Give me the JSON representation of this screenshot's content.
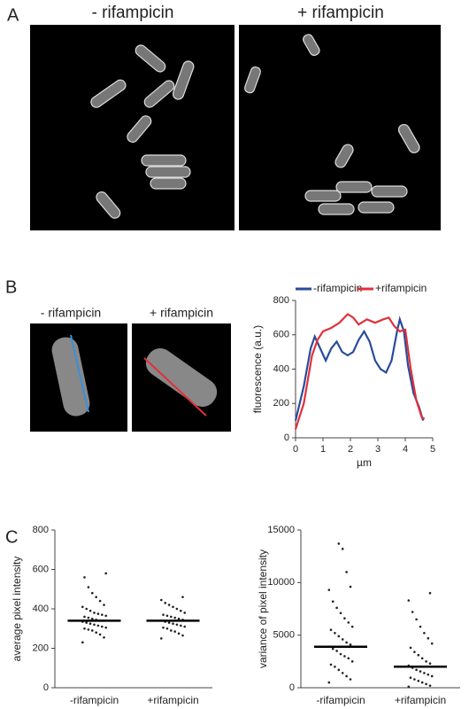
{
  "panel_labels": [
    "A",
    "B",
    "C"
  ],
  "image_labels": [
    "- rifampicin",
    "+ rifampicin",
    "- rifampicin",
    "+ rifampicin"
  ],
  "chart_data": [
    {
      "type": "line",
      "xlabel": "µm",
      "ylabel": "fluorescence (a.u.)",
      "xlim": [
        0,
        5
      ],
      "ylim": [
        0,
        800
      ],
      "xticks": [
        0,
        1,
        2,
        3,
        4,
        5
      ],
      "yticks": [
        0,
        200,
        400,
        600,
        800
      ],
      "legend": "top",
      "series": [
        {
          "name": "-rifampicin",
          "color": "#2a4b9b",
          "x": [
            0,
            0.3,
            0.55,
            0.7,
            0.9,
            1.1,
            1.3,
            1.5,
            1.7,
            1.9,
            2.1,
            2.3,
            2.5,
            2.7,
            2.9,
            3.1,
            3.3,
            3.5,
            3.7,
            3.8,
            3.95,
            4.1,
            4.3,
            4.5,
            4.65
          ],
          "values": [
            100,
            300,
            520,
            590,
            520,
            450,
            520,
            560,
            500,
            480,
            500,
            570,
            620,
            560,
            450,
            400,
            380,
            450,
            620,
            690,
            620,
            420,
            260,
            180,
            100
          ]
        },
        {
          "name": "+rifampicin",
          "color": "#e0303a",
          "x": [
            0,
            0.3,
            0.6,
            0.8,
            1.0,
            1.3,
            1.6,
            1.9,
            2.1,
            2.3,
            2.6,
            2.9,
            3.2,
            3.4,
            3.6,
            3.8,
            4.0,
            4.2,
            4.4,
            4.6,
            4.7
          ],
          "values": [
            50,
            200,
            480,
            570,
            620,
            640,
            670,
            720,
            700,
            660,
            690,
            670,
            690,
            700,
            650,
            620,
            630,
            400,
            220,
            120,
            110
          ]
        }
      ]
    },
    {
      "type": "dotplot",
      "ylabel": "average pixel intensity",
      "ylim": [
        0,
        800
      ],
      "yticks": [
        0,
        200,
        400,
        600,
        800
      ],
      "categories": [
        "-rifampicin",
        "+rifampicin"
      ],
      "means": [
        340,
        340
      ],
      "points": [
        [
          230,
          255,
          270,
          280,
          290,
          295,
          300,
          305,
          310,
          315,
          320,
          325,
          330,
          335,
          340,
          340,
          345,
          350,
          355,
          360,
          365,
          370,
          375,
          380,
          390,
          400,
          410,
          420,
          440,
          460,
          480,
          510,
          560,
          580
        ],
        [
          250,
          265,
          275,
          285,
          290,
          300,
          305,
          310,
          315,
          320,
          325,
          330,
          335,
          340,
          345,
          350,
          355,
          360,
          365,
          370,
          380,
          390,
          400,
          410,
          420,
          430,
          445,
          460
        ]
      ]
    },
    {
      "type": "dotplot",
      "ylabel": "variance of pixel intensity",
      "ylim": [
        0,
        15000
      ],
      "yticks": [
        0,
        5000,
        10000,
        15000
      ],
      "categories": [
        "-rifampicin",
        "+rifampicin"
      ],
      "means": [
        3900,
        2000
      ],
      "points": [
        [
          500,
          800,
          1100,
          1400,
          1700,
          2000,
          2200,
          2500,
          2800,
          3000,
          3200,
          3500,
          3700,
          3900,
          4100,
          4300,
          4600,
          4900,
          5200,
          5500,
          5800,
          6200,
          6600,
          7100,
          7600,
          8200,
          9300,
          9600,
          11000,
          13200,
          13700
        ],
        [
          100,
          200,
          350,
          500,
          650,
          800,
          950,
          1100,
          1250,
          1400,
          1550,
          1700,
          1900,
          2100,
          2300,
          2500,
          2800,
          3100,
          3400,
          3800,
          4200,
          4700,
          5200,
          5800,
          6500,
          7200,
          8300,
          9000
        ]
      ]
    }
  ]
}
